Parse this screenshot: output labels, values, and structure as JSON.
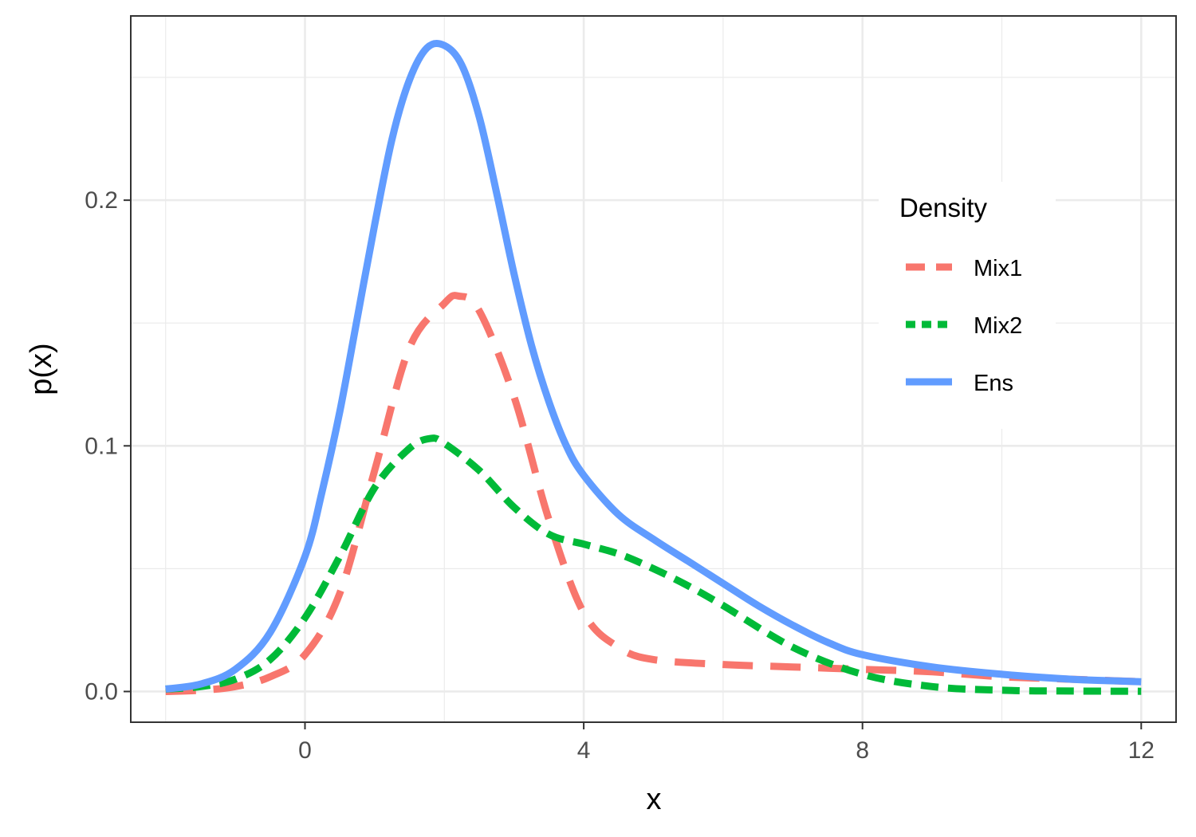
{
  "chart_data": {
    "type": "line",
    "title": "",
    "xlabel": "x",
    "ylabel": "p(x)",
    "xlim": [
      -2.5,
      12.5
    ],
    "ylim": [
      -0.0125,
      0.275
    ],
    "x_ticks": [
      0,
      4,
      8,
      12
    ],
    "x_tick_labels": [
      "0",
      "4",
      "8",
      "12"
    ],
    "y_ticks": [
      0.0,
      0.1,
      0.2
    ],
    "y_tick_labels": [
      "0.0",
      "0.1",
      "0.2"
    ],
    "grid": true,
    "legend": {
      "title": "Density",
      "position": "right"
    },
    "series": [
      {
        "name": "Mix1",
        "color": "#F8766D",
        "dash": "long-dash",
        "x": [
          -2,
          -1.5,
          -1,
          -0.5,
          0,
          0.5,
          1,
          1.5,
          2,
          2.2,
          2.5,
          3,
          3.5,
          4,
          4.5,
          5,
          6,
          7,
          8,
          9,
          10,
          11,
          12
        ],
        "y": [
          0.0,
          0.0005,
          0.002,
          0.006,
          0.015,
          0.04,
          0.09,
          0.14,
          0.158,
          0.161,
          0.155,
          0.12,
          0.07,
          0.032,
          0.018,
          0.013,
          0.011,
          0.01,
          0.009,
          0.008,
          0.006,
          0.005,
          0.004
        ]
      },
      {
        "name": "Mix2",
        "color": "#00BA38",
        "dash": "dashed",
        "x": [
          -2,
          -1.5,
          -1,
          -0.5,
          0,
          0.5,
          1,
          1.5,
          1.8,
          2,
          2.5,
          3,
          3.5,
          4,
          4.5,
          5,
          5.5,
          6,
          7,
          8,
          9,
          10,
          11,
          12
        ],
        "y": [
          0.001,
          0.002,
          0.005,
          0.013,
          0.03,
          0.055,
          0.083,
          0.099,
          0.103,
          0.101,
          0.09,
          0.075,
          0.064,
          0.06,
          0.056,
          0.05,
          0.043,
          0.035,
          0.018,
          0.007,
          0.002,
          0.0005,
          0.0002,
          0.0001
        ]
      },
      {
        "name": "Ens",
        "color": "#619CFF",
        "dash": "solid",
        "x": [
          -2,
          -1.5,
          -1,
          -0.5,
          0,
          0.25,
          0.5,
          0.75,
          1,
          1.25,
          1.5,
          1.75,
          2,
          2.25,
          2.5,
          2.75,
          3,
          3.25,
          3.5,
          3.75,
          4,
          4.5,
          5,
          5.5,
          6,
          6.5,
          7,
          7.5,
          8,
          9,
          10,
          11,
          12
        ],
        "y": [
          0.001,
          0.003,
          0.009,
          0.024,
          0.055,
          0.082,
          0.114,
          0.152,
          0.19,
          0.225,
          0.249,
          0.262,
          0.263,
          0.255,
          0.234,
          0.203,
          0.17,
          0.141,
          0.118,
          0.1,
          0.088,
          0.072,
          0.062,
          0.053,
          0.044,
          0.035,
          0.027,
          0.02,
          0.015,
          0.01,
          0.007,
          0.005,
          0.004
        ]
      }
    ]
  }
}
